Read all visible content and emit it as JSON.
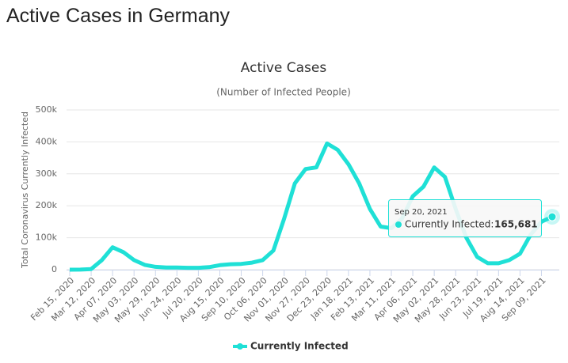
{
  "page_title": "Active Cases in Germany",
  "chart_data": {
    "type": "line",
    "title": "Active Cases",
    "subtitle": "(Number of Infected People)",
    "y_label": "Total Coronavirus Currently Infected",
    "categories": [
      "Feb 15, 2020",
      null,
      "Mar 12, 2020",
      null,
      "Apr 07, 2020",
      null,
      "May 03, 2020",
      null,
      "May 29, 2020",
      null,
      "Jun 24, 2020",
      null,
      "Jul 20, 2020",
      null,
      "Aug 15, 2020",
      null,
      "Sep 10, 2020",
      null,
      "Oct 06, 2020",
      null,
      "Nov 01, 2020",
      null,
      "Nov 27, 2020",
      null,
      "Dec 23, 2020",
      null,
      "Jan 18, 2021",
      null,
      "Feb 13, 2021",
      null,
      "Mar 11, 2021",
      null,
      "Apr 06, 2021",
      null,
      "May 02, 2021",
      null,
      "May 28, 2021",
      null,
      "Jun 23, 2021",
      null,
      "Jul 19, 2021",
      null,
      "Aug 14, 2021",
      null,
      "Sep 09, 2021",
      null
    ],
    "series": [
      {
        "name": "Currently Infected",
        "color": "#1fe0d6",
        "values": [
          0,
          200,
          2000,
          30000,
          70000,
          55000,
          30000,
          15000,
          9000,
          7000,
          7000,
          6000,
          6000,
          8000,
          14000,
          17000,
          18000,
          22000,
          30000,
          60000,
          160000,
          270000,
          315000,
          320000,
          395000,
          375000,
          330000,
          270000,
          190000,
          135000,
          130000,
          160000,
          230000,
          260000,
          320000,
          290000,
          190000,
          100000,
          40000,
          20000,
          20000,
          30000,
          50000,
          110000,
          150000,
          165681
        ]
      }
    ],
    "ylim": [
      0,
      500000
    ],
    "yticks": [
      0,
      {
        "value": 100000,
        "label": "100k"
      },
      {
        "value": 200000,
        "label": "200k"
      },
      {
        "value": 300000,
        "label": "300k"
      },
      {
        "value": 400000,
        "label": "400k"
      },
      {
        "value": 500000,
        "label": "500k"
      }
    ],
    "grid": true,
    "tooltip": {
      "date": "Sep 20, 2021",
      "series": "Currently Infected:",
      "value": 165681,
      "value_label": "165,681"
    }
  }
}
